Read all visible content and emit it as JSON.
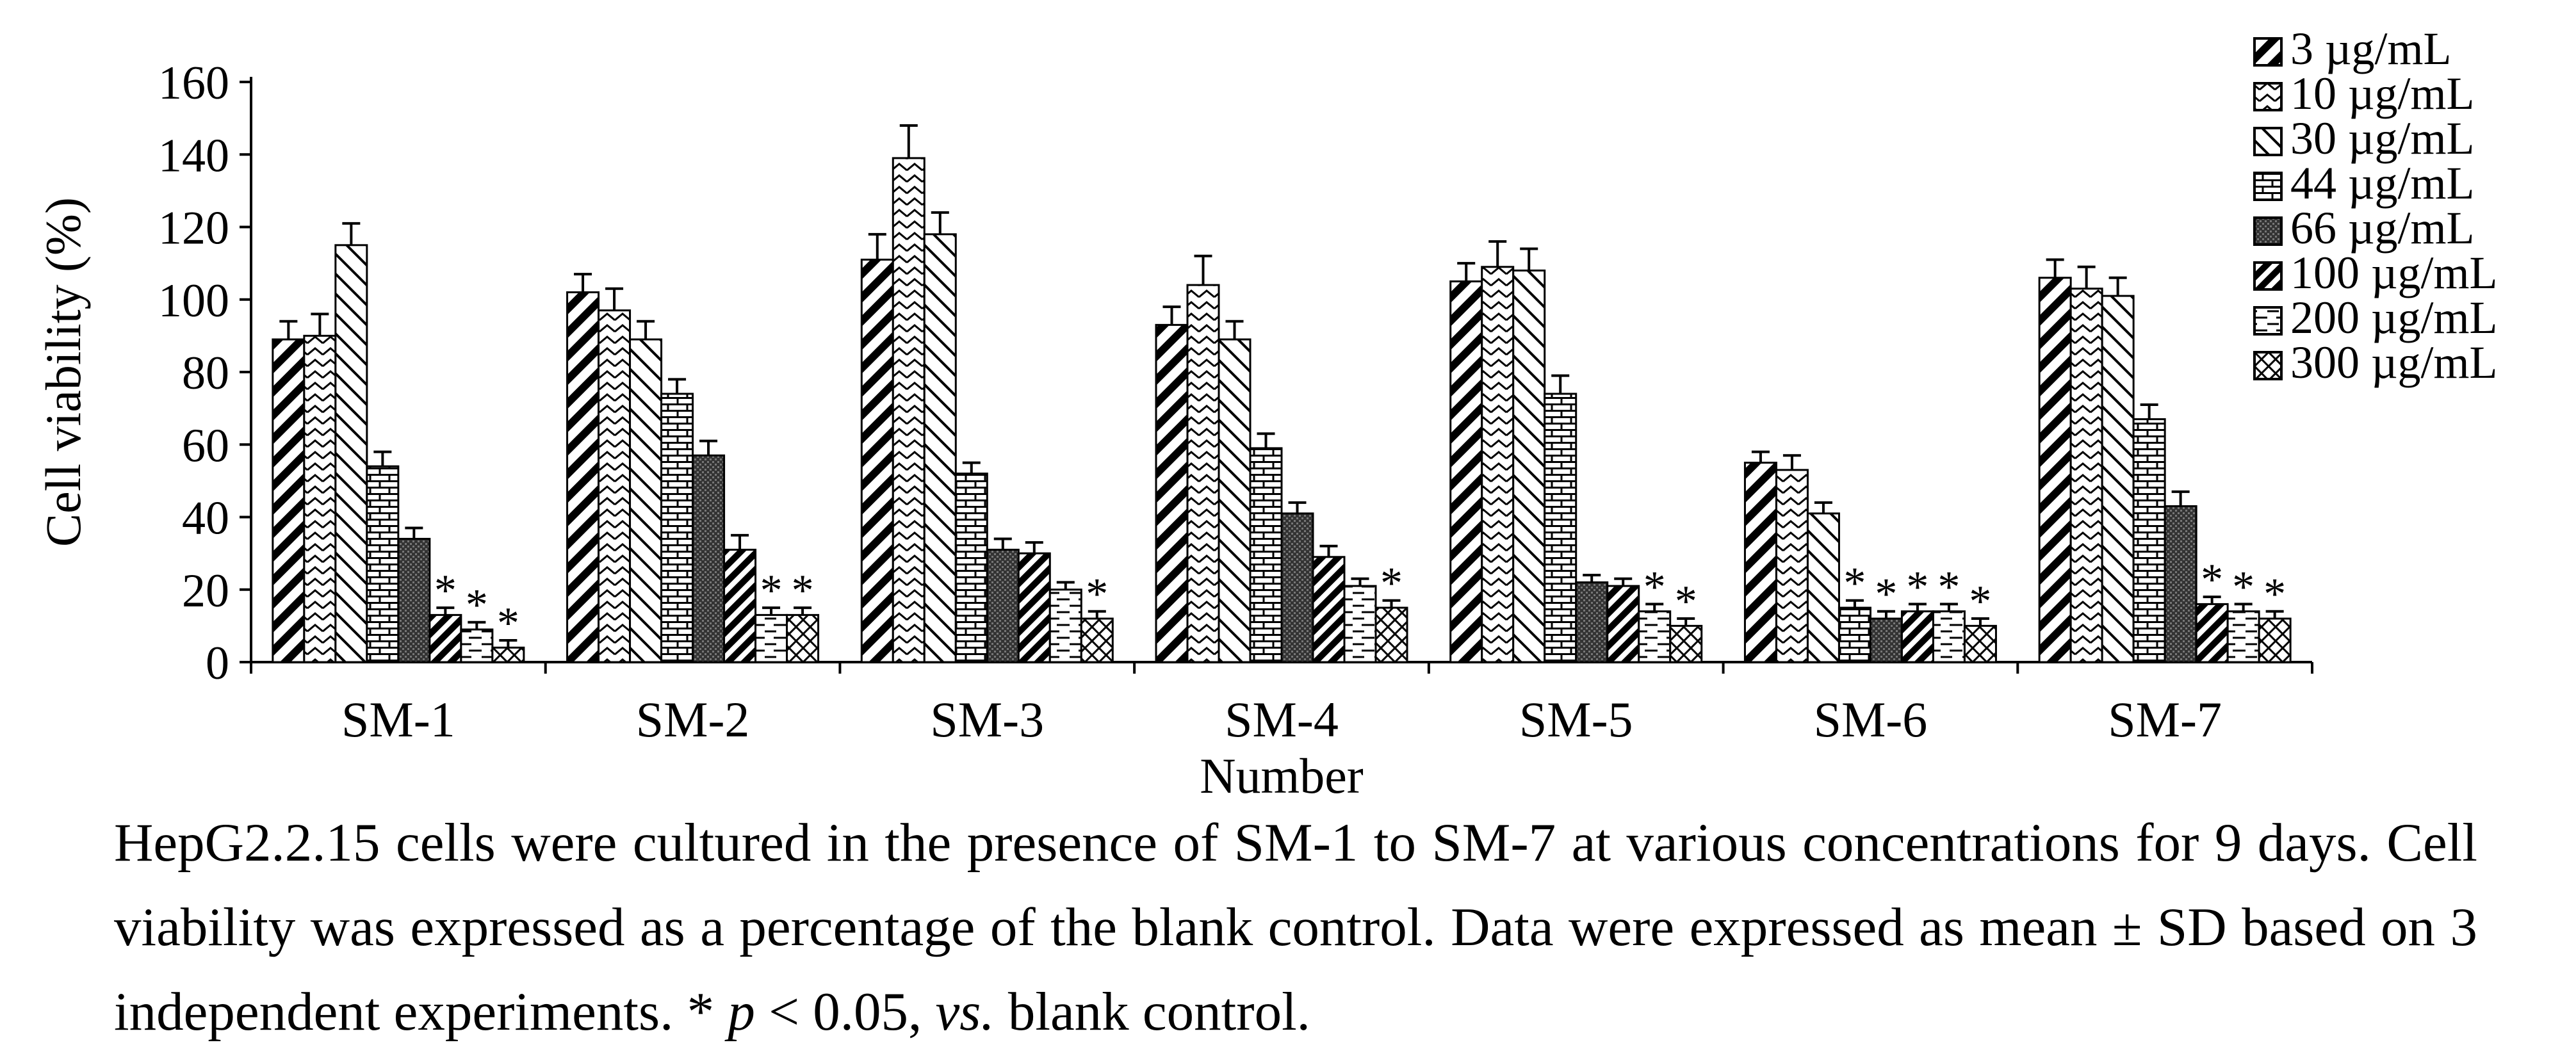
{
  "chart_data": {
    "type": "bar",
    "title": "",
    "xlabel": "Number",
    "ylabel": "Cell viability (%)",
    "ylim": [
      0,
      160
    ],
    "yticks": [
      0,
      20,
      40,
      60,
      80,
      100,
      120,
      140,
      160
    ],
    "grid": false,
    "legend_position": "top-right",
    "categories": [
      "SM-1",
      "SM-2",
      "SM-3",
      "SM-4",
      "SM-5",
      "SM-6",
      "SM-7"
    ],
    "series": [
      {
        "name": "3 µg/mL",
        "pattern": "diag-left",
        "values": [
          89,
          102,
          111,
          93,
          105,
          55,
          106
        ],
        "errors": [
          5,
          5,
          7,
          5,
          5,
          3,
          5
        ],
        "significant": [
          false,
          false,
          false,
          false,
          false,
          false,
          false
        ]
      },
      {
        "name": "10 µg/mL",
        "pattern": "zigzag",
        "values": [
          90,
          97,
          139,
          104,
          109,
          53,
          103
        ],
        "errors": [
          6,
          6,
          9,
          8,
          7,
          4,
          6
        ],
        "significant": [
          false,
          false,
          false,
          false,
          false,
          false,
          false
        ]
      },
      {
        "name": "30 µg/mL",
        "pattern": "diag-right",
        "values": [
          115,
          89,
          118,
          89,
          108,
          41,
          101
        ],
        "errors": [
          6,
          5,
          6,
          5,
          6,
          3,
          5
        ],
        "significant": [
          false,
          false,
          false,
          false,
          false,
          false,
          false
        ]
      },
      {
        "name": "44 µg/mL",
        "pattern": "brick",
        "values": [
          54,
          74,
          52,
          59,
          74,
          15,
          67
        ],
        "errors": [
          4,
          4,
          3,
          4,
          5,
          2,
          4
        ],
        "significant": [
          false,
          false,
          false,
          false,
          false,
          true,
          false
        ]
      },
      {
        "name": "66 µg/mL",
        "pattern": "dense",
        "values": [
          34,
          57,
          31,
          41,
          22,
          12,
          43
        ],
        "errors": [
          3,
          4,
          3,
          3,
          2,
          2,
          4
        ],
        "significant": [
          false,
          false,
          false,
          false,
          false,
          true,
          false
        ]
      },
      {
        "name": "100 µg/mL",
        "pattern": "diag-bold",
        "values": [
          13,
          31,
          30,
          29,
          21,
          14,
          16
        ],
        "errors": [
          2,
          4,
          3,
          3,
          2,
          2,
          2
        ],
        "significant": [
          true,
          false,
          false,
          false,
          false,
          true,
          true
        ]
      },
      {
        "name": "200 µg/mL",
        "pattern": "dashes",
        "values": [
          9,
          13,
          20,
          21,
          14,
          14,
          14
        ],
        "errors": [
          2,
          2,
          2,
          2,
          2,
          2,
          2
        ],
        "significant": [
          true,
          true,
          false,
          false,
          true,
          true,
          true
        ]
      },
      {
        "name": "300 µg/mL",
        "pattern": "cross",
        "values": [
          4,
          13,
          12,
          15,
          10,
          10,
          12
        ],
        "errors": [
          2,
          2,
          2,
          2,
          2,
          2,
          2
        ],
        "significant": [
          true,
          true,
          true,
          true,
          true,
          true,
          true
        ]
      }
    ],
    "significance_marker": "*"
  },
  "caption": {
    "part1": "HepG2.2.15 cells were cultured in the presence of SM-1 to SM-7 at various concentrations for 9 days. Cell viability was expressed as a percentage of the blank control. Data were expressed as mean ± SD based on 3 independent experiments. * ",
    "p_symbol": "p",
    "part2": " < 0.05, ",
    "vs_text": "vs.",
    "part3": " blank control."
  }
}
